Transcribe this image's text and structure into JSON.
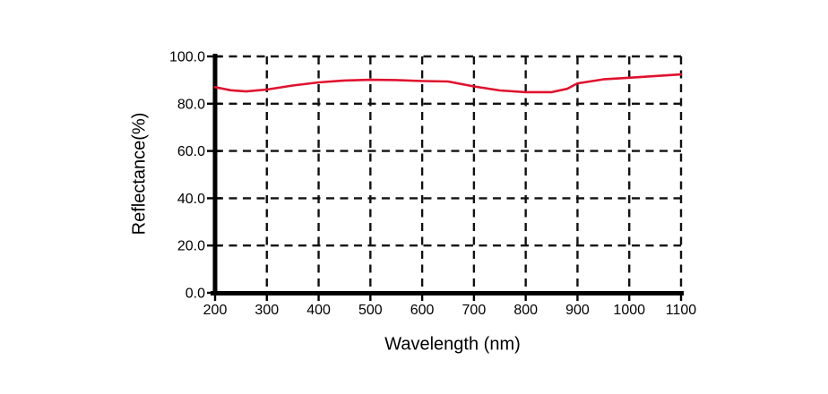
{
  "chart_data": {
    "type": "line",
    "title": "",
    "xlabel": "Wavelength (nm)",
    "ylabel": "Reflectance(%)",
    "xlim": [
      200,
      1100
    ],
    "ylim": [
      0,
      100
    ],
    "x_ticks": [
      200,
      300,
      400,
      500,
      600,
      700,
      800,
      900,
      1000,
      1100
    ],
    "x_tick_labels": [
      "200",
      "300",
      "400",
      "500",
      "600",
      "700",
      "800",
      "900",
      "1000",
      "1100"
    ],
    "y_ticks": [
      0,
      20,
      40,
      60,
      80,
      100
    ],
    "y_tick_labels": [
      "0.0",
      "20.0",
      "40.0",
      "60.0",
      "80.0",
      "100.0"
    ],
    "grid": "dashed-both-axes",
    "legend": "none",
    "axis_color": "#000000",
    "grid_color": "#111111",
    "series": [
      {
        "name": "reflectance",
        "color": "#e0122e",
        "x": [
          200,
          230,
          260,
          300,
          350,
          400,
          450,
          500,
          550,
          600,
          650,
          700,
          750,
          800,
          850,
          880,
          900,
          950,
          1000,
          1050,
          1100
        ],
        "y": [
          87.0,
          85.7,
          85.2,
          86.0,
          87.7,
          89.0,
          89.8,
          90.1,
          90.0,
          89.6,
          89.4,
          87.3,
          85.6,
          84.9,
          84.9,
          86.3,
          88.6,
          90.3,
          91.0,
          91.7,
          92.4
        ]
      }
    ]
  }
}
